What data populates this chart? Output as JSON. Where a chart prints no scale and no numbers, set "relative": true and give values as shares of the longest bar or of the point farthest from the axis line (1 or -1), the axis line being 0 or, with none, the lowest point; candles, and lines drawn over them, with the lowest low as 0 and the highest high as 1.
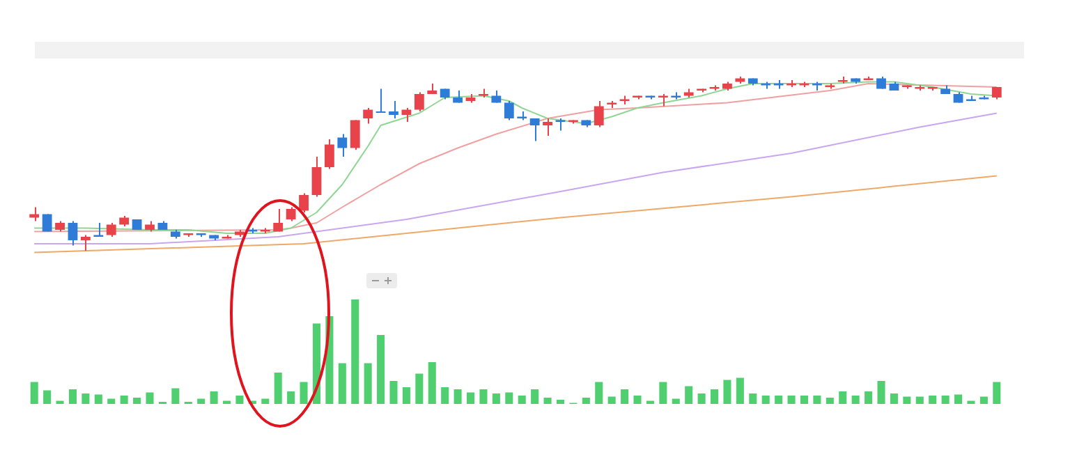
{
  "chart_data": [
    {
      "type": "candlestick",
      "relative": true,
      "categories": [
        null,
        null,
        null,
        null,
        null,
        null,
        null,
        null,
        null,
        null,
        null,
        null,
        null,
        null,
        null,
        null,
        null,
        null,
        null,
        null,
        null,
        null,
        null,
        null,
        null,
        null,
        null,
        null,
        null,
        null,
        null,
        null,
        null,
        null,
        null,
        null,
        null,
        null,
        null,
        null,
        null,
        null,
        null,
        null,
        null,
        null,
        null,
        null,
        null,
        null,
        null,
        null,
        null,
        null,
        null,
        null,
        null,
        null,
        null,
        null,
        null,
        null,
        null,
        null,
        null,
        null,
        null,
        null,
        null,
        null,
        null,
        null,
        null,
        null,
        null,
        null
      ],
      "ohlc": [
        [
          0.19,
          0.25,
          0.17,
          0.21
        ],
        [
          0.21,
          0.21,
          0.11,
          0.11
        ],
        [
          0.12,
          0.17,
          0.11,
          0.16
        ],
        [
          0.16,
          0.17,
          0.03,
          0.06
        ],
        [
          0.06,
          0.09,
          0.0,
          0.08
        ],
        [
          0.09,
          0.16,
          0.08,
          0.08
        ],
        [
          0.09,
          0.16,
          0.08,
          0.15
        ],
        [
          0.15,
          0.2,
          0.14,
          0.19
        ],
        [
          0.18,
          0.18,
          0.12,
          0.12
        ],
        [
          0.12,
          0.17,
          0.11,
          0.15
        ],
        [
          0.16,
          0.17,
          0.12,
          0.12
        ],
        [
          0.11,
          0.12,
          0.07,
          0.08
        ],
        [
          0.09,
          0.1,
          0.08,
          0.1
        ],
        [
          0.1,
          0.1,
          0.08,
          0.09
        ],
        [
          0.09,
          0.09,
          0.06,
          0.07
        ],
        [
          0.07,
          0.09,
          0.07,
          0.08
        ],
        [
          0.09,
          0.12,
          0.08,
          0.11
        ],
        [
          0.12,
          0.13,
          0.1,
          0.11
        ],
        [
          0.11,
          0.13,
          0.1,
          0.12
        ],
        [
          0.11,
          0.24,
          0.11,
          0.16
        ],
        [
          0.18,
          0.25,
          0.17,
          0.24
        ],
        [
          0.23,
          0.33,
          0.22,
          0.32
        ],
        [
          0.32,
          0.54,
          0.31,
          0.48
        ],
        [
          0.48,
          0.64,
          0.47,
          0.61
        ],
        [
          0.65,
          0.67,
          0.54,
          0.59
        ],
        [
          0.59,
          0.75,
          0.58,
          0.75
        ],
        [
          0.76,
          0.82,
          0.73,
          0.81
        ],
        [
          0.8,
          0.93,
          0.8,
          0.8
        ],
        [
          0.8,
          0.86,
          0.76,
          0.78
        ],
        [
          0.78,
          0.82,
          0.74,
          0.81
        ],
        [
          0.81,
          0.91,
          0.8,
          0.9
        ],
        [
          0.9,
          0.96,
          0.9,
          0.92
        ],
        [
          0.93,
          0.93,
          0.87,
          0.88
        ],
        [
          0.88,
          0.92,
          0.85,
          0.85
        ],
        [
          0.86,
          0.9,
          0.85,
          0.88
        ],
        [
          0.89,
          0.93,
          0.88,
          0.9
        ],
        [
          0.89,
          0.92,
          0.85,
          0.85
        ],
        [
          0.85,
          0.86,
          0.75,
          0.76
        ],
        [
          0.77,
          0.8,
          0.75,
          0.76
        ],
        [
          0.76,
          0.76,
          0.63,
          0.72
        ],
        [
          0.72,
          0.76,
          0.66,
          0.74
        ],
        [
          0.75,
          0.76,
          0.69,
          0.74
        ],
        [
          0.74,
          0.75,
          0.73,
          0.75
        ],
        [
          0.75,
          0.75,
          0.71,
          0.72
        ],
        [
          0.72,
          0.86,
          0.71,
          0.83
        ],
        [
          0.84,
          0.86,
          0.82,
          0.85
        ],
        [
          0.86,
          0.89,
          0.84,
          0.87
        ],
        [
          0.88,
          0.89,
          0.87,
          0.89
        ],
        [
          0.89,
          0.89,
          0.87,
          0.88
        ],
        [
          0.88,
          0.9,
          0.83,
          0.89
        ],
        [
          0.89,
          0.91,
          0.87,
          0.88
        ],
        [
          0.89,
          0.93,
          0.88,
          0.91
        ],
        [
          0.92,
          0.93,
          0.91,
          0.93
        ],
        [
          0.93,
          0.95,
          0.92,
          0.94
        ],
        [
          0.93,
          0.97,
          0.92,
          0.96
        ],
        [
          0.97,
          1.0,
          0.96,
          0.99
        ],
        [
          0.99,
          0.99,
          0.95,
          0.96
        ],
        [
          0.96,
          0.97,
          0.93,
          0.95
        ],
        [
          0.96,
          0.98,
          0.93,
          0.95
        ],
        [
          0.95,
          0.98,
          0.94,
          0.96
        ],
        [
          0.95,
          0.97,
          0.94,
          0.96
        ],
        [
          0.96,
          0.97,
          0.92,
          0.95
        ],
        [
          0.94,
          0.96,
          0.93,
          0.95
        ],
        [
          0.97,
          1.0,
          0.96,
          0.98
        ],
        [
          0.99,
          0.99,
          0.96,
          0.97
        ],
        [
          0.98,
          1.0,
          0.98,
          0.99
        ],
        [
          0.99,
          1.0,
          0.93,
          0.93
        ],
        [
          0.96,
          0.97,
          0.92,
          0.92
        ],
        [
          0.94,
          0.95,
          0.93,
          0.95
        ],
        [
          0.93,
          0.95,
          0.92,
          0.94
        ],
        [
          0.93,
          0.94,
          0.92,
          0.94
        ],
        [
          0.93,
          0.95,
          0.9,
          0.9
        ],
        [
          0.9,
          0.91,
          0.85,
          0.85
        ],
        [
          0.87,
          0.89,
          0.86,
          0.86
        ],
        [
          0.88,
          0.89,
          0.87,
          0.87
        ],
        [
          0.88,
          0.94,
          0.87,
          0.94
        ]
      ],
      "colors": [
        "#e8424a",
        "#2f7bd8",
        "#e8424a",
        "#2f7bd8",
        "#e8424a",
        "#2f7bd8",
        "#e8424a",
        "#e8424a",
        "#2f7bd8",
        "#e8424a",
        "#2f7bd8",
        "#2f7bd8",
        "#e8424a",
        "#2f7bd8",
        "#2f7bd8",
        "#e8424a",
        "#e8424a",
        "#2f7bd8",
        "#e8424a",
        "#e8424a",
        "#e8424a",
        "#e8424a",
        "#e8424a",
        "#e8424a",
        "#2f7bd8",
        "#e8424a",
        "#e8424a",
        "#2f7bd8",
        "#2f7bd8",
        "#e8424a",
        "#e8424a",
        "#e8424a",
        "#2f7bd8",
        "#2f7bd8",
        "#e8424a",
        "#e8424a",
        "#2f7bd8",
        "#2f7bd8",
        "#2f7bd8",
        "#2f7bd8",
        "#e8424a",
        "#2f7bd8",
        "#e8424a",
        "#2f7bd8",
        "#e8424a",
        "#e8424a",
        "#e8424a",
        "#e8424a",
        "#2f7bd8",
        "#e8424a",
        "#2f7bd8",
        "#e8424a",
        "#e8424a",
        "#e8424a",
        "#e8424a",
        "#e8424a",
        "#2f7bd8",
        "#2f7bd8",
        "#2f7bd8",
        "#e8424a",
        "#e8424a",
        "#2f7bd8",
        "#e8424a",
        "#e8424a",
        "#2f7bd8",
        "#e8424a",
        "#2f7bd8",
        "#2f7bd8",
        "#e8424a",
        "#e8424a",
        "#e8424a",
        "#2f7bd8",
        "#2f7bd8",
        "#2f7bd8",
        "#2f7bd8",
        "#e8424a"
      ],
      "series": [
        {
          "type": "line",
          "color": "#8fd694",
          "values": [
            0.13,
            null,
            null,
            null,
            0.13,
            null,
            null,
            null,
            null,
            0.12,
            null,
            null,
            0.12,
            null,
            null,
            0.1,
            null,
            null,
            0.1,
            null,
            0.13,
            null,
            0.22,
            null,
            0.38,
            null,
            0.6,
            0.72,
            null,
            null,
            0.79,
            null,
            0.88,
            null,
            null,
            0.89,
            null,
            0.86,
            0.82,
            null,
            0.76,
            null,
            null,
            0.73,
            null,
            0.77,
            null,
            0.82,
            null,
            0.85,
            null,
            null,
            0.89,
            null,
            0.93,
            null,
            0.96,
            null,
            null,
            0.96,
            null,
            null,
            0.96,
            null,
            null,
            0.97,
            null,
            0.97,
            null,
            null,
            0.94,
            null,
            null,
            0.9,
            null,
            0.89
          ]
        },
        {
          "type": "line",
          "color": "#f0a0a0",
          "values": [
            0.11,
            null,
            null,
            null,
            null,
            null,
            null,
            null,
            null,
            null,
            null,
            null,
            null,
            null,
            null,
            null,
            null,
            null,
            null,
            0.12,
            0.13,
            null,
            0.16,
            null,
            0.25,
            null,
            null,
            0.38,
            null,
            null,
            0.5,
            null,
            null,
            0.59,
            null,
            null,
            0.67,
            null,
            null,
            null,
            0.76,
            null,
            null,
            null,
            0.81,
            null,
            null,
            0.82,
            null,
            null,
            null,
            null,
            null,
            null,
            0.85,
            null,
            null,
            null,
            null,
            null,
            null,
            null,
            0.92,
            null,
            null,
            0.96,
            null,
            null,
            null,
            null,
            null,
            null,
            null,
            null,
            null,
            0.94
          ]
        },
        {
          "type": "line",
          "color": "#c9a6f0",
          "values": [
            0.04,
            null,
            null,
            null,
            null,
            null,
            null,
            null,
            null,
            0.04,
            null,
            null,
            null,
            null,
            null,
            null,
            null,
            null,
            null,
            0.08,
            null,
            null,
            null,
            null,
            null,
            null,
            null,
            null,
            null,
            0.18,
            null,
            null,
            null,
            null,
            null,
            null,
            null,
            null,
            null,
            null,
            null,
            0.34,
            null,
            null,
            null,
            null,
            null,
            null,
            null,
            0.45,
            null,
            null,
            null,
            null,
            null,
            null,
            null,
            null,
            null,
            0.56,
            null,
            null,
            null,
            null,
            null,
            null,
            null,
            null,
            null,
            0.71,
            null,
            null,
            null,
            null,
            null,
            0.79
          ]
        },
        {
          "type": "line",
          "color": "#f0a868",
          "values": [
            -0.01,
            null,
            null,
            null,
            null,
            null,
            null,
            null,
            null,
            null,
            null,
            null,
            null,
            null,
            null,
            null,
            null,
            null,
            null,
            null,
            null,
            0.04,
            null,
            null,
            null,
            null,
            null,
            null,
            null,
            0.1,
            null,
            null,
            null,
            null,
            null,
            null,
            null,
            null,
            null,
            null,
            null,
            0.19,
            null,
            null,
            null,
            null,
            null,
            null,
            null,
            null,
            null,
            null,
            null,
            null,
            null,
            null,
            null,
            null,
            null,
            0.31,
            null,
            null,
            null,
            null,
            null,
            null,
            null,
            null,
            null,
            null,
            null,
            null,
            null,
            null,
            null,
            0.43
          ]
        }
      ]
    },
    {
      "type": "bar",
      "relative": true,
      "color": "#4fcf70",
      "categories": [
        null,
        null,
        null,
        null,
        null,
        null,
        null,
        null,
        null,
        null,
        null,
        null,
        null,
        null,
        null,
        null,
        null,
        null,
        null,
        null,
        null,
        null,
        null,
        null,
        null,
        null,
        null,
        null,
        null,
        null,
        null,
        null,
        null,
        null,
        null,
        null,
        null,
        null,
        null,
        null,
        null,
        null,
        null,
        null,
        null,
        null,
        null,
        null,
        null,
        null,
        null,
        null,
        null,
        null,
        null,
        null,
        null,
        null,
        null,
        null,
        null,
        null,
        null,
        null,
        null,
        null,
        null,
        null,
        null,
        null,
        null,
        null,
        null,
        null,
        null,
        null
      ],
      "values": [
        0.21,
        0.13,
        0.03,
        0.14,
        0.1,
        0.09,
        0.05,
        0.08,
        0.06,
        0.11,
        0.02,
        0.15,
        0.02,
        0.05,
        0.12,
        0.03,
        0.08,
        0.03,
        0.05,
        0.3,
        0.12,
        0.21,
        0.77,
        0.84,
        0.39,
        1,
        0.39,
        0.66,
        0.22,
        0.16,
        0.29,
        0.4,
        0.16,
        0.14,
        0.11,
        0.14,
        0.1,
        0.11,
        0.08,
        0.14,
        0.06,
        0.04,
        0.01,
        0.06,
        0.21,
        0.07,
        0.14,
        0.08,
        0.03,
        0.21,
        0.05,
        0.17,
        0.1,
        0.14,
        0.23,
        0.25,
        0.1,
        0.08,
        0.08,
        0.08,
        0.08,
        0.08,
        0.06,
        0.12,
        0.08,
        0.12,
        0.22,
        0.1,
        0.07,
        0.07,
        0.08,
        0.08,
        0.09,
        0.03,
        0.07,
        0.21
      ]
    }
  ]
}
